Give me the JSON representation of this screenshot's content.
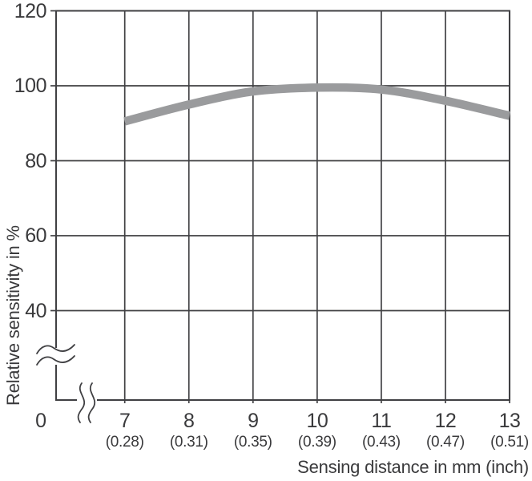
{
  "chart_data": {
    "type": "line",
    "title": "",
    "xlabel": "Sensing distance in mm (inch)",
    "ylabel": "Relative sensitivity in %",
    "x": [
      7,
      8,
      9,
      10,
      11,
      12,
      13
    ],
    "x_tick_labels_mm": [
      "7",
      "8",
      "9",
      "10",
      "11",
      "12",
      "13"
    ],
    "x_tick_labels_inch": [
      "(0.28)",
      "(0.31)",
      "(0.35)",
      "(0.39)",
      "(0.43)",
      "(0.47)",
      "(0.51)"
    ],
    "y_ticks": [
      120,
      100,
      80,
      60,
      40
    ],
    "origin_label": "0",
    "series": [
      {
        "name": "Relative sensitivity",
        "values": [
          90.5,
          95,
          98.5,
          99.5,
          99,
          96,
          92
        ]
      }
    ],
    "ylim": [
      0,
      120
    ],
    "displayed_y_range": [
      40,
      120
    ],
    "axis_break": {
      "y_axis": true,
      "x_axis": true
    },
    "grid": true,
    "legend": false,
    "colors": {
      "curve": "#9a9b9d",
      "axis": "#404043",
      "text": "#3a3a3c",
      "background": "#ffffff"
    }
  }
}
